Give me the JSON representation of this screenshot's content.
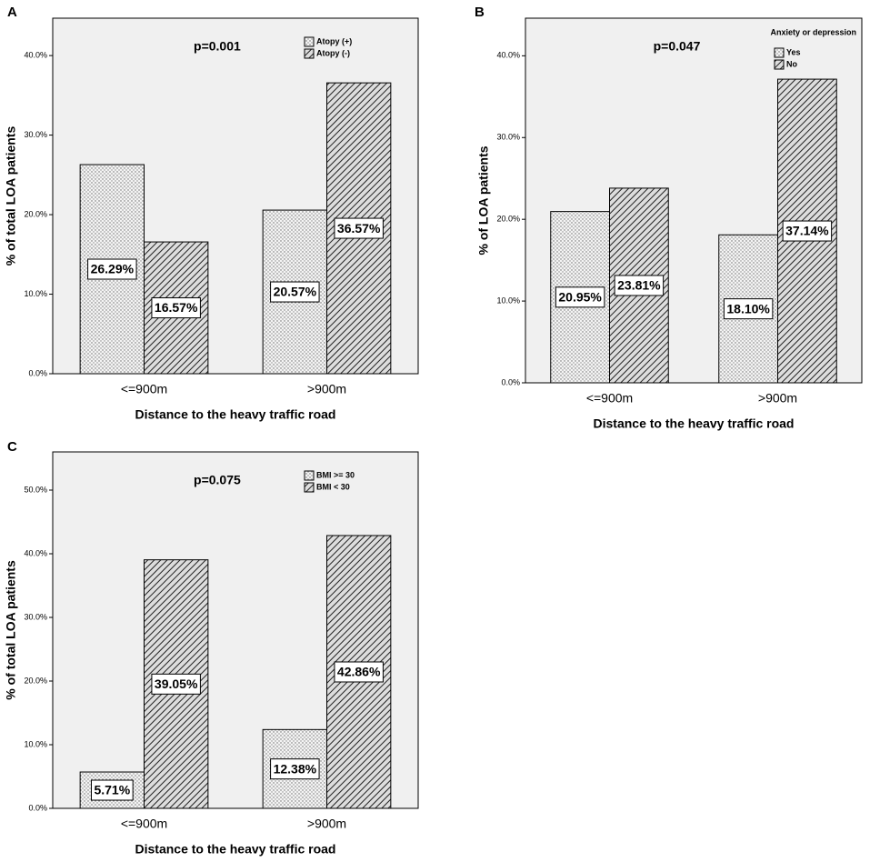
{
  "chart_data": [
    {
      "type": "bar",
      "panel": "A",
      "annotation": "p=0.001",
      "ylabel": "% of total LOA patients",
      "xlabel": "Distance to the heavy traffic road",
      "categories": [
        "<=900m",
        ">900m"
      ],
      "series": [
        {
          "name": "Atopy (+)",
          "pattern": "dots",
          "values": [
            26.29,
            20.57
          ],
          "value_labels": [
            "26.29%",
            "20.57%"
          ]
        },
        {
          "name": "Atopy (-)",
          "pattern": "hatch",
          "values": [
            16.57,
            36.57
          ],
          "value_labels": [
            "16.57%",
            "36.57%"
          ]
        }
      ],
      "ylim": [
        0,
        44.7
      ],
      "yticks": [
        {
          "value": 0,
          "label": "0.0%"
        },
        {
          "value": 10,
          "label": "10.0%"
        },
        {
          "value": 20,
          "label": "20.0%"
        },
        {
          "value": 30,
          "label": "30.0%"
        },
        {
          "value": 40,
          "label": "40.0%"
        }
      ]
    },
    {
      "type": "bar",
      "panel": "B",
      "annotation": "p=0.047",
      "ylabel": "% of LOA patients",
      "xlabel": "Distance to the heavy traffic road",
      "legend_title": "Anxiety  or depression",
      "categories": [
        "<=900m",
        ">900m"
      ],
      "series": [
        {
          "name": "Yes",
          "pattern": "dots",
          "values": [
            20.95,
            18.1
          ],
          "value_labels": [
            "20.95%",
            "18.10%"
          ]
        },
        {
          "name": "No",
          "pattern": "hatch",
          "values": [
            23.81,
            37.14
          ],
          "value_labels": [
            "23.81%",
            "37.14%"
          ]
        }
      ],
      "ylim": [
        0,
        44.6
      ],
      "yticks": [
        {
          "value": 0,
          "label": "0.0%"
        },
        {
          "value": 10,
          "label": "10.0%"
        },
        {
          "value": 20,
          "label": "20.0%"
        },
        {
          "value": 30,
          "label": "30.0%"
        },
        {
          "value": 40,
          "label": "40.0%"
        }
      ]
    },
    {
      "type": "bar",
      "panel": "C",
      "annotation": "p=0.075",
      "ylabel": "% of total LOA patients",
      "xlabel": "Distance to the heavy traffic road",
      "categories": [
        "<=900m",
        ">900m"
      ],
      "series": [
        {
          "name": "BMI >= 30",
          "pattern": "dots",
          "values": [
            5.71,
            12.38
          ],
          "value_labels": [
            "5.71%",
            "12.38%"
          ]
        },
        {
          "name": "BMI < 30",
          "pattern": "hatch",
          "values": [
            39.05,
            42.86
          ],
          "value_labels": [
            "39.05%",
            "42.86%"
          ]
        }
      ],
      "ylim": [
        0,
        56
      ],
      "yticks": [
        {
          "value": 0,
          "label": "0.0%"
        },
        {
          "value": 10,
          "label": "10.0%"
        },
        {
          "value": 20,
          "label": "20.0%"
        },
        {
          "value": 30,
          "label": "30.0%"
        },
        {
          "value": 40,
          "label": "40.0%"
        },
        {
          "value": 50,
          "label": "50.0%"
        }
      ]
    }
  ]
}
